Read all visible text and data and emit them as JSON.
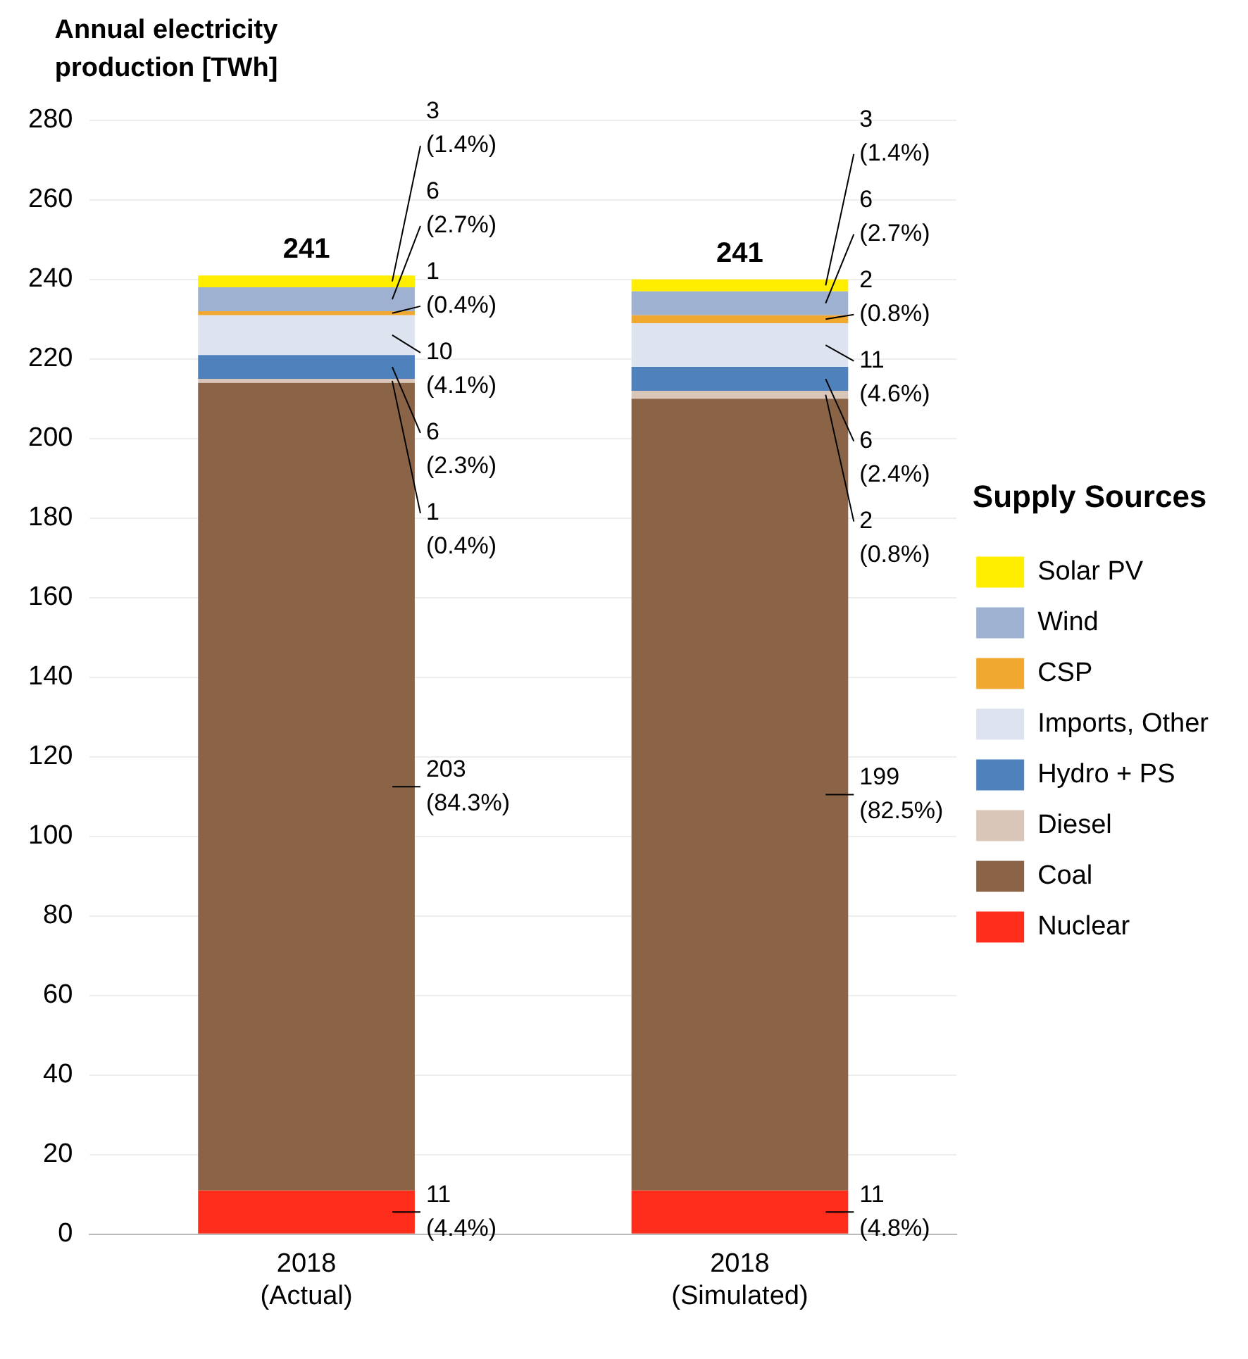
{
  "chart_data": {
    "type": "bar",
    "stacked": true,
    "ylabel": "Annual electricity production [TWh]",
    "legend_title": "Supply Sources",
    "legend": "right",
    "grid": "y",
    "categories": [
      "2018\n(Actual)",
      "2018\n(Simulated)"
    ],
    "ylim": [
      0,
      280
    ],
    "yticks": [
      0,
      20,
      40,
      60,
      80,
      100,
      120,
      140,
      160,
      180,
      200,
      220,
      240,
      260,
      280
    ],
    "totals": [
      "241",
      "241"
    ],
    "series": [
      {
        "name": "Nuclear",
        "color": "#ff2d1c",
        "values": [
          11,
          11
        ],
        "value_labels": [
          "11\n(4.4%)",
          "11\n(4.8%)"
        ]
      },
      {
        "name": "Coal",
        "color": "#8b6448",
        "values": [
          203,
          199
        ],
        "value_labels": [
          "203\n(84.3%)",
          "199\n(82.5%)"
        ]
      },
      {
        "name": "Diesel",
        "color": "#d9c6b9",
        "values": [
          1,
          2
        ],
        "value_labels": [
          "1\n(0.4%)",
          "2\n(0.8%)"
        ]
      },
      {
        "name": "Hydro + PS",
        "color": "#4f81bd",
        "values": [
          6,
          6
        ],
        "value_labels": [
          "6\n(2.3%)",
          "6\n(2.4%)"
        ]
      },
      {
        "name": "Imports, Other",
        "color": "#dde4ef",
        "values": [
          10,
          11
        ],
        "value_labels": [
          "10\n(4.1%)",
          "11\n(4.6%)"
        ]
      },
      {
        "name": "CSP",
        "color": "#f0a830",
        "values": [
          1,
          2
        ],
        "value_labels": [
          "1\n(0.4%)",
          "2\n(0.8%)"
        ]
      },
      {
        "name": "Wind",
        "color": "#9fb1d0",
        "values": [
          6,
          6
        ],
        "value_labels": [
          "6\n(2.7%)",
          "6\n(2.7%)"
        ]
      },
      {
        "name": "Solar PV",
        "color": "#ffee00",
        "values": [
          3,
          3
        ],
        "value_labels": [
          "3\n(1.4%)",
          "3\n(1.4%)"
        ]
      }
    ]
  }
}
